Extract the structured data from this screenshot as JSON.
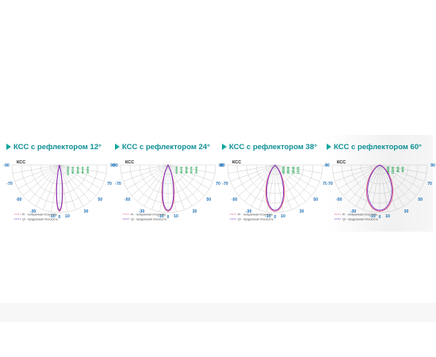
{
  "colors": {
    "title": "#0d8f95",
    "angle_label": "#1f6fb5",
    "candela_label": "#16a34a",
    "grid": "#c9c9c9",
    "curve_transverse": "#e0527a",
    "curve_longitudinal": "#7a2fc4"
  },
  "chart_data": [
    {
      "type": "polar",
      "title": "КСС с рефлектором 12°",
      "axis_label": "КСС",
      "angle_ticks": [
        "-90",
        "-70",
        "-50",
        "-30",
        "-10",
        "0",
        "10",
        "30",
        "50",
        "70",
        "90"
      ],
      "intensity_ticks": [
        "10000",
        "8000",
        "6000",
        "4000",
        "2000"
      ],
      "beam_angle_deg": 12,
      "series": [
        {
          "name": "Pr - поперечная плоскость",
          "half_width_deg": 6
        },
        {
          "name": "Qr - продольная плоскость",
          "half_width_deg": 6
        }
      ]
    },
    {
      "type": "polar",
      "title": "КСС с рефлектором 24°",
      "axis_label": "КСС",
      "angle_ticks": [
        "-90",
        "-70",
        "-50",
        "-30",
        "-10",
        "0",
        "10",
        "30",
        "50",
        "70",
        "90"
      ],
      "intensity_ticks": [
        "6000",
        "5000",
        "4000",
        "3000",
        "2000"
      ],
      "beam_angle_deg": 24,
      "series": [
        {
          "name": "Pr - поперечная плоскость",
          "half_width_deg": 12
        },
        {
          "name": "Qr - продольная плоскость",
          "half_width_deg": 12
        }
      ]
    },
    {
      "type": "polar",
      "title": "КСС с рефлектором 38°",
      "axis_label": "КСС",
      "angle_ticks": [
        "-90",
        "-70",
        "-50",
        "-30",
        "-10",
        "0",
        "10",
        "30",
        "50",
        "70",
        "90"
      ],
      "intensity_ticks": [
        "4000",
        "3000",
        "2000",
        "1000"
      ],
      "beam_angle_deg": 38,
      "series": [
        {
          "name": "Pr - поперечная плоскость",
          "half_width_deg": 19
        },
        {
          "name": "Qr - продольная плоскость",
          "half_width_deg": 19
        }
      ]
    },
    {
      "type": "polar",
      "title": "КСС с рефлектором 60°",
      "axis_label": "КСС",
      "angle_ticks": [
        "-90",
        "-70",
        "-50",
        "-30",
        "-10",
        "0",
        "10",
        "30",
        "50",
        "70",
        "90"
      ],
      "intensity_ticks": [
        "1600",
        "1200",
        "800",
        "400"
      ],
      "beam_angle_deg": 60,
      "series": [
        {
          "name": "Pr - поперечная плоскость",
          "half_width_deg": 30
        },
        {
          "name": "Qr - продольная плоскость",
          "half_width_deg": 30
        }
      ]
    }
  ]
}
